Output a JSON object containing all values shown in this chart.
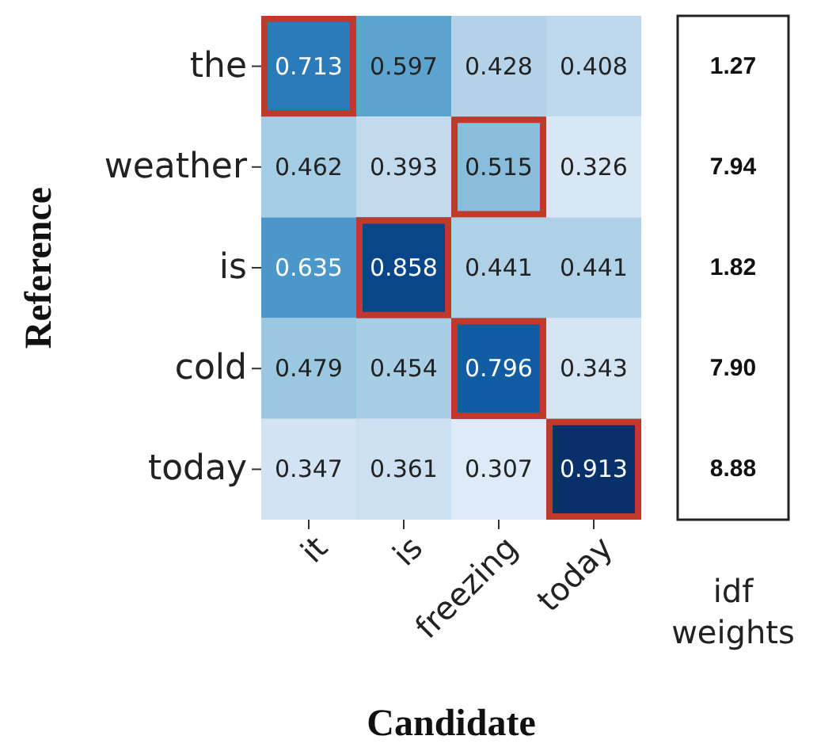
{
  "chart_data": {
    "type": "heatmap",
    "xlabel": "Candidate",
    "ylabel": "Reference",
    "y2label": "idf weights",
    "data_labels": true,
    "categories": [
      "it",
      "is",
      "freezing",
      "today"
    ],
    "y_categories": [
      "the",
      "weather",
      "is",
      "cold",
      "today"
    ],
    "y2_categories": [
      "1.27",
      "7.94",
      "1.82",
      "7.90",
      "8.88"
    ],
    "cells": [
      [
        0.713,
        0.597,
        0.428,
        0.408
      ],
      [
        0.462,
        0.393,
        0.515,
        0.326
      ],
      [
        0.635,
        0.858,
        0.441,
        0.441
      ],
      [
        0.479,
        0.454,
        0.796,
        0.343
      ],
      [
        0.347,
        0.361,
        0.307,
        0.913
      ]
    ]
  }
}
